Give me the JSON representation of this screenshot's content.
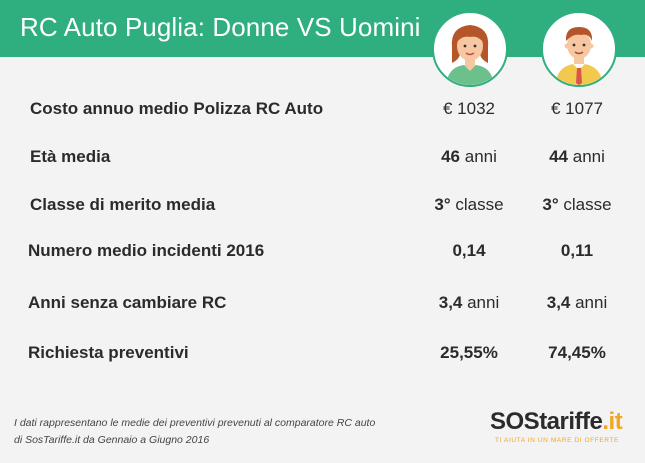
{
  "header": {
    "title": "RC Auto Puglia: Donne VS Uomini",
    "color": "#2fae7f"
  },
  "avatars": {
    "woman": "woman-avatar-icon",
    "man": "man-avatar-icon"
  },
  "rows": [
    {
      "label": "Costo annuo medio Polizza RC Auto",
      "woman": {
        "num": "€ 1032",
        "unit": ""
      },
      "man": {
        "num": "€ 1077",
        "unit": ""
      }
    },
    {
      "label": "Età media",
      "woman": {
        "num": "46",
        "unit": " anni"
      },
      "man": {
        "num": "44",
        "unit": " anni"
      }
    },
    {
      "label": "Classe di merito media",
      "woman": {
        "num": "3°",
        "unit": " classe"
      },
      "man": {
        "num": "3°",
        "unit": " classe"
      }
    },
    {
      "label": "Numero medio incidenti 2016",
      "woman": {
        "num": "0,14",
        "unit": ""
      },
      "man": {
        "num": "0,11",
        "unit": ""
      }
    },
    {
      "label": "Anni  senza cambiare RC",
      "woman": {
        "num": "3,4",
        "unit": " anni"
      },
      "man": {
        "num": "3,4",
        "unit": " anni"
      }
    },
    {
      "label": "Richiesta preventivi",
      "woman": {
        "num": "25,55%",
        "unit": ""
      },
      "man": {
        "num": "74,45%",
        "unit": ""
      }
    }
  ],
  "footnote": {
    "line1": "I dati rappresentano le medie dei preventivi prevenuti al comparatore RC auto",
    "line2": "di SosTariffe.it da Gennaio a Giugno 2016"
  },
  "logo": {
    "sos": "SOS",
    "tariffe": "tariffe",
    "it": ".it",
    "tagline": "TI AIUTA IN UN MARE DI OFFERTE",
    "accent": "#f2a623"
  }
}
